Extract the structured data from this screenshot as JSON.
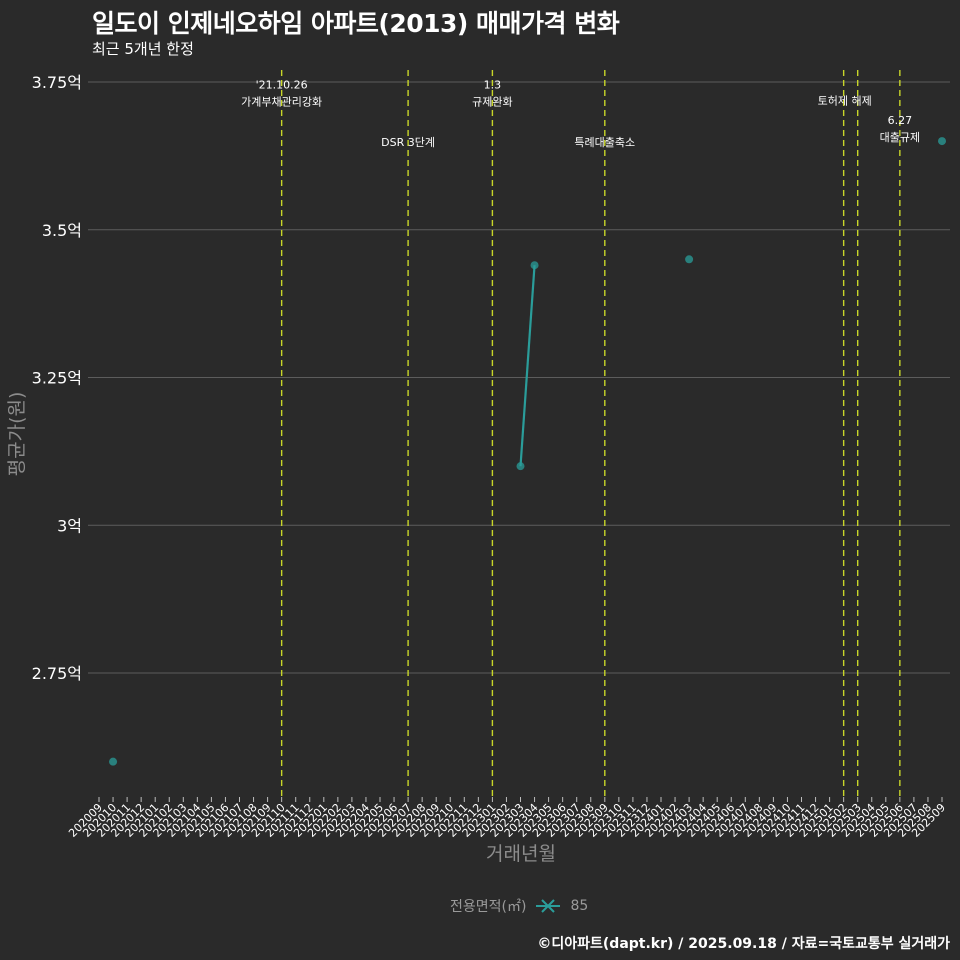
{
  "header": {
    "title": "일도이 인제네오하임 아파트(2013) 매매가격 변화",
    "subtitle": "최근 5개년 한정"
  },
  "footer": {
    "caption": "©디아파트(dapt.kr) / 2025.09.18 / 자료=국토교통부 실거래가"
  },
  "legend": {
    "title": "전용면적(㎡)",
    "items": [
      {
        "label": "85",
        "color": "#2a9d9a"
      }
    ]
  },
  "colors": {
    "background": "#2a2a2a",
    "grid": "#5c5c5c",
    "series": "#2a9d9a",
    "event_line": "#c8d629",
    "text": "#ffffff",
    "axis_title": "#8c8c8c"
  },
  "chart_data": {
    "type": "line",
    "title": "일도이 인제네오하임 아파트(2013) 매매가격 변화",
    "subtitle": "최근 5개년 한정",
    "xlabel": "거래년월",
    "ylabel": "평균가(원)",
    "ylim": [
      2.58,
      3.77
    ],
    "yticks": [
      2.75,
      3.0,
      3.25,
      3.5,
      3.75
    ],
    "ytick_labels": [
      "2.75억",
      "3억",
      "3.25억",
      "3.5억",
      "3.75억"
    ],
    "grid": true,
    "legend_position": "bottom",
    "x_categories": [
      "202009",
      "202010",
      "202011",
      "202012",
      "202101",
      "202102",
      "202103",
      "202104",
      "202105",
      "202106",
      "202107",
      "202108",
      "202109",
      "202110",
      "202111",
      "202112",
      "202201",
      "202202",
      "202203",
      "202204",
      "202205",
      "202206",
      "202207",
      "202208",
      "202209",
      "202210",
      "202211",
      "202212",
      "202301",
      "202302",
      "202303",
      "202304",
      "202305",
      "202306",
      "202307",
      "202308",
      "202309",
      "202310",
      "202311",
      "202312",
      "202401",
      "202402",
      "202403",
      "202404",
      "202405",
      "202406",
      "202407",
      "202408",
      "202409",
      "202410",
      "202411",
      "202412",
      "202501",
      "202502",
      "202503",
      "202504",
      "202505",
      "202506",
      "202507",
      "202508",
      "202509"
    ],
    "series": [
      {
        "name": "85",
        "points": [
          {
            "x": "202010",
            "y": 2.6
          },
          {
            "x": "202303",
            "y": 3.1
          },
          {
            "x": "202304",
            "y": 3.44
          },
          {
            "x": "202403",
            "y": 3.45
          },
          {
            "x": "202509",
            "y": 3.65
          }
        ],
        "segments": [
          [
            "202303",
            "202304"
          ]
        ]
      }
    ],
    "annotations": [
      {
        "x": "202110",
        "lines": [
          "'21.10.26",
          "가계부채관리강화"
        ],
        "label_y": 3.72
      },
      {
        "x": "202207",
        "lines": [
          "DSR 3단계"
        ],
        "label_y": 3.65
      },
      {
        "x": "202301",
        "lines": [
          "1.3",
          "규제완화"
        ],
        "label_y": 3.72
      },
      {
        "x": "202309",
        "lines": [
          "특례대출축소"
        ],
        "label_y": 3.65
      },
      {
        "x": "202502",
        "lines": [],
        "label_y": null
      },
      {
        "x": "202503",
        "lines": [
          "토허제 해제"
        ],
        "label_y": 3.72,
        "label_x_offset": -13
      },
      {
        "x": "202506",
        "lines": [
          "6.27",
          "대출규제"
        ],
        "label_y": 3.66
      }
    ]
  }
}
